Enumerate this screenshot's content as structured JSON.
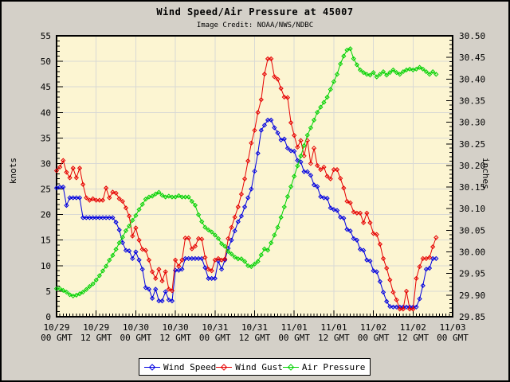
{
  "window": {
    "background": "#d4d0c8",
    "border_color": "#000000"
  },
  "chart_data": {
    "type": "line",
    "title": "Wind Speed/Air Pressure at 45007",
    "subtitle": "Image Credit: NOAA/NWS/NDBC",
    "plot_bg": "#fcf5d2",
    "grid_color": "#d9d9d4",
    "grid": "on",
    "legend_position": "bottom-center",
    "y_left": {
      "label": "knots",
      "min": 0,
      "max": 55,
      "major_step": 5,
      "minor_step": 1
    },
    "y_right": {
      "label": "inches",
      "min": 29.85,
      "max": 30.5,
      "major_step": 0.05,
      "minor_step": 0.01
    },
    "x_axis": {
      "unit": "hours since 10/29 00:00 GMT",
      "hours_total": 120,
      "major_step_hours": 12,
      "minor_step_hours": 1,
      "tick_labels": [
        {
          "date": "10/29",
          "time": "00 GMT"
        },
        {
          "date": "10/29",
          "time": "12 GMT"
        },
        {
          "date": "10/30",
          "time": "00 GMT"
        },
        {
          "date": "10/30",
          "time": "12 GMT"
        },
        {
          "date": "10/31",
          "time": "00 GMT"
        },
        {
          "date": "10/31",
          "time": "12 GMT"
        },
        {
          "date": "11/01",
          "time": "00 GMT"
        },
        {
          "date": "11/01",
          "time": "12 GMT"
        },
        {
          "date": "11/02",
          "time": "00 GMT"
        },
        {
          "date": "11/02",
          "time": "12 GMT"
        },
        {
          "date": "11/03",
          "time": "00 GMT"
        }
      ]
    },
    "series": [
      {
        "name": "Wind Speed",
        "color": "#0000e0",
        "axis": "left",
        "marker": "diamond",
        "values": [
          25.2,
          25.4,
          25.4,
          21.8,
          23.3,
          23.3,
          23.3,
          23.3,
          19.4,
          19.4,
          19.4,
          19.4,
          19.4,
          19.4,
          19.4,
          19.4,
          19.4,
          19.4,
          18.5,
          17.0,
          14.5,
          13.0,
          12.9,
          11.4,
          12.7,
          11.1,
          9.3,
          5.7,
          5.4,
          3.6,
          5.4,
          3.1,
          3.1,
          4.9,
          3.3,
          3.1,
          9.1,
          9.1,
          9.3,
          11.4,
          11.4,
          11.4,
          11.4,
          11.4,
          11.4,
          9.6,
          7.5,
          7.5,
          7.5,
          10.9,
          9.3,
          11.1,
          13.4,
          15.0,
          16.8,
          18.6,
          19.7,
          21.5,
          23.3,
          25.0,
          28.5,
          32.0,
          36.5,
          37.5,
          38.5,
          38.5,
          37.0,
          36.0,
          34.6,
          34.8,
          33.0,
          32.5,
          32.4,
          30.6,
          30.3,
          28.4,
          28.4,
          27.7,
          25.8,
          25.5,
          23.5,
          23.3,
          23.2,
          21.3,
          21.0,
          20.8,
          19.5,
          19.3,
          17.1,
          16.8,
          15.3,
          15.0,
          13.2,
          13.0,
          11.1,
          10.9,
          9.0,
          8.8,
          6.9,
          4.8,
          3.0,
          2.0,
          1.9,
          1.9,
          1.9,
          1.9,
          1.9,
          1.9,
          1.9,
          1.9,
          3.5,
          6.1,
          9.3,
          9.5,
          11.4,
          11.4
        ]
      },
      {
        "name": "Wind Gust",
        "color": "#e60000",
        "axis": "left",
        "marker": "diamond",
        "values": [
          28.6,
          29.3,
          30.6,
          28.3,
          27.2,
          29.1,
          27.2,
          29.1,
          25.9,
          23.3,
          22.8,
          23.1,
          22.8,
          22.8,
          22.8,
          25.2,
          23.3,
          24.4,
          24.2,
          23.1,
          22.6,
          21.3,
          19.7,
          15.8,
          17.4,
          15.0,
          13.2,
          13.0,
          11.1,
          8.8,
          7.5,
          9.3,
          7.0,
          8.8,
          5.4,
          5.1,
          11.1,
          9.9,
          11.1,
          15.4,
          15.4,
          13.3,
          13.8,
          15.3,
          15.2,
          11.6,
          9.3,
          9.0,
          11.1,
          11.4,
          11.1,
          11.3,
          15.3,
          17.5,
          19.5,
          21.5,
          24.0,
          27.0,
          30.5,
          34.0,
          36.5,
          40.0,
          42.5,
          47.5,
          50.5,
          50.5,
          47.0,
          46.5,
          44.7,
          43.0,
          42.9,
          38.0,
          35.5,
          33.2,
          34.5,
          31.5,
          34.5,
          30.0,
          33.0,
          29.6,
          28.8,
          29.3,
          27.5,
          27.0,
          28.8,
          28.8,
          27.1,
          25.2,
          22.6,
          22.3,
          20.5,
          20.3,
          20.3,
          18.4,
          20.3,
          18.4,
          16.3,
          16.1,
          14.2,
          11.4,
          9.5,
          7.2,
          4.8,
          3.3,
          1.5,
          1.5,
          5.0,
          1.5,
          1.5,
          7.5,
          9.8,
          11.4,
          11.4,
          11.6,
          13.7,
          15.5
        ]
      },
      {
        "name": "Air Pressure",
        "color": "#00d200",
        "axis": "right",
        "marker": "diamond",
        "values": [
          29.915,
          29.915,
          29.911,
          29.907,
          29.901,
          29.898,
          29.9,
          29.903,
          29.907,
          29.913,
          29.92,
          29.926,
          29.935,
          29.945,
          29.956,
          29.967,
          29.981,
          29.992,
          30.006,
          30.021,
          30.034,
          30.049,
          30.06,
          30.073,
          30.084,
          30.098,
          30.11,
          30.122,
          30.127,
          30.129,
          30.134,
          30.138,
          30.131,
          30.127,
          30.129,
          30.127,
          30.127,
          30.13,
          30.127,
          30.127,
          30.127,
          30.117,
          30.108,
          30.086,
          30.07,
          30.057,
          30.051,
          30.046,
          30.039,
          30.031,
          30.019,
          30.013,
          30.001,
          29.995,
          29.988,
          29.984,
          29.984,
          29.978,
          29.968,
          29.966,
          29.972,
          29.978,
          29.993,
          30.007,
          30.004,
          30.021,
          30.039,
          30.057,
          30.08,
          30.104,
          30.128,
          30.151,
          30.175,
          30.199,
          30.222,
          30.246,
          30.27,
          30.287,
          30.305,
          30.323,
          30.335,
          30.346,
          30.358,
          30.376,
          30.394,
          30.411,
          30.435,
          30.453,
          30.467,
          30.47,
          30.447,
          30.433,
          30.421,
          30.415,
          30.411,
          30.409,
          30.415,
          30.405,
          30.411,
          30.417,
          30.409,
          30.415,
          30.421,
          30.415,
          30.411,
          30.417,
          30.421,
          30.423,
          30.421,
          30.423,
          30.427,
          30.423,
          30.417,
          30.411,
          30.417,
          30.411
        ]
      }
    ]
  }
}
